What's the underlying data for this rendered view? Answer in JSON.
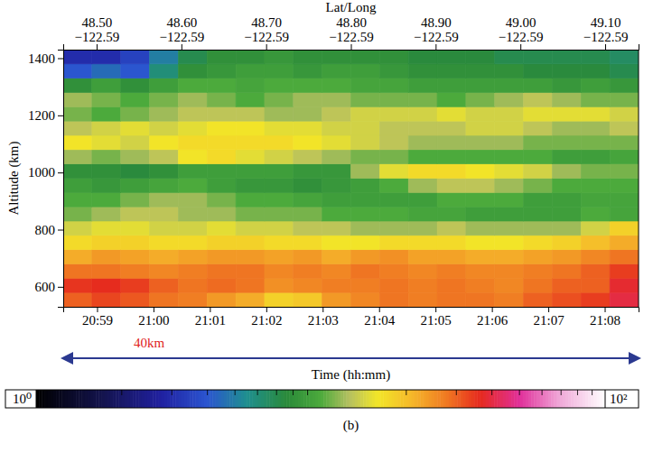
{
  "chart_data": {
    "type": "heatmap",
    "x2_title": "Lat/Long",
    "x_title": "Time (hh:mm)",
    "y_title": "Altitude (km)",
    "annotation": "40km",
    "panel_label": "(b)",
    "xlim": [
      1258.4,
      1268.6
    ],
    "xticks": [
      {
        "value": 1259,
        "label": "20:59"
      },
      {
        "value": 1260,
        "label": "21:00"
      },
      {
        "value": 1261,
        "label": "21:01"
      },
      {
        "value": 1262,
        "label": "21:02"
      },
      {
        "value": 1263,
        "label": "21:03"
      },
      {
        "value": 1264,
        "label": "21:04"
      },
      {
        "value": 1265,
        "label": "21:05"
      },
      {
        "value": 1266,
        "label": "21:06"
      },
      {
        "value": 1267,
        "label": "21:07"
      },
      {
        "value": 1268,
        "label": "21:08"
      }
    ],
    "x2lim": [
      48.4606,
      49.1394
    ],
    "x2ticks": [
      {
        "value": 48.5,
        "label": "48.50\n−122.59"
      },
      {
        "value": 48.6,
        "label": "48.60\n−122.59"
      },
      {
        "value": 48.7,
        "label": "48.70\n−122.59"
      },
      {
        "value": 48.8,
        "label": "48.80\n−122.59"
      },
      {
        "value": 48.9,
        "label": "48.90\n−122.59"
      },
      {
        "value": 49.0,
        "label": "49.00\n−122.59"
      },
      {
        "value": 49.1,
        "label": "49.10\n−122.59"
      }
    ],
    "ylim": [
      530,
      1430
    ],
    "yticks": [
      600,
      800,
      1000,
      1200,
      1400
    ],
    "x_bins": [
      1258.4,
      1258.91,
      1259.42,
      1259.93,
      1260.44,
      1260.95,
      1261.46,
      1261.97,
      1262.48,
      1262.99,
      1263.5,
      1264.01,
      1264.52,
      1265.03,
      1265.54,
      1266.05,
      1266.56,
      1267.07,
      1267.58,
      1268.09,
      1268.6
    ],
    "y_bins": [
      530,
      580,
      630,
      680,
      730,
      780,
      830,
      880,
      930,
      980,
      1030,
      1080,
      1130,
      1180,
      1230,
      1280,
      1330,
      1380,
      1430
    ],
    "z": [
      [
        30,
        33,
        31,
        28,
        27,
        24,
        22,
        18,
        19,
        24,
        26,
        28,
        27,
        28,
        28,
        27,
        30,
        32,
        34,
        40
      ],
      [
        35,
        36,
        34,
        30,
        28,
        29,
        28,
        25,
        26,
        27,
        27,
        28,
        27,
        28,
        27,
        26,
        28,
        30,
        30,
        38
      ],
      [
        28,
        28,
        27,
        26,
        27,
        28,
        28,
        26,
        27,
        26,
        28,
        27,
        26,
        27,
        26,
        26,
        27,
        28,
        30,
        34
      ],
      [
        22,
        24,
        23,
        22,
        23,
        24,
        24,
        23,
        24,
        22,
        24,
        25,
        23,
        23,
        22,
        22,
        23,
        24,
        26,
        28
      ],
      [
        17,
        18,
        18,
        17,
        17,
        18,
        18,
        17,
        17,
        16,
        16,
        17,
        17,
        17,
        16,
        16,
        17,
        18,
        20,
        22
      ],
      [
        14,
        15,
        15,
        14,
        14,
        15,
        14,
        14,
        13,
        13,
        12,
        12,
        12,
        13,
        12,
        12,
        12,
        12,
        14,
        18
      ],
      [
        11,
        12,
        13,
        13,
        12,
        12,
        11,
        11,
        11,
        10,
        10,
        10,
        9.5,
        9.5,
        9,
        9,
        9,
        9,
        10,
        9.5
      ],
      [
        10,
        10,
        11,
        12,
        12,
        11,
        10,
        10,
        9.5,
        9,
        9,
        9,
        9,
        10,
        10,
        10,
        9,
        9,
        9.5,
        9.5
      ],
      [
        9,
        8.5,
        9,
        9.5,
        10,
        9,
        8.5,
        8.5,
        8,
        8.5,
        9,
        10,
        12,
        13,
        13,
        12,
        11,
        10,
        10,
        10
      ],
      [
        8,
        8,
        7.5,
        8,
        9,
        9,
        9,
        9,
        8.5,
        8.5,
        12,
        15,
        17,
        17,
        16,
        15,
        14,
        12,
        11,
        11
      ],
      [
        12,
        11,
        12,
        13,
        16,
        17,
        15,
        14,
        13,
        12,
        11,
        11,
        10,
        10,
        10,
        10,
        10,
        9,
        9,
        9.5
      ],
      [
        16,
        15,
        14,
        16,
        17,
        17,
        17,
        17,
        16,
        15,
        14,
        13,
        12,
        12,
        12,
        12,
        11,
        11,
        11,
        11
      ],
      [
        13,
        14,
        15,
        14,
        15,
        16,
        16,
        15,
        15,
        14,
        14,
        13,
        13,
        13,
        14,
        14,
        13,
        12,
        12,
        13
      ],
      [
        11,
        10,
        11,
        12,
        13,
        13,
        13,
        12,
        12,
        13,
        14,
        14,
        14,
        15,
        14,
        14,
        15,
        15,
        15,
        14
      ],
      [
        12,
        11,
        10,
        11,
        12,
        11,
        10,
        11,
        12,
        12,
        11,
        11,
        11,
        10,
        11,
        12,
        13,
        12,
        11,
        11
      ],
      [
        8,
        9,
        8,
        9,
        10,
        10,
        9.5,
        10,
        10,
        10,
        9.5,
        9.5,
        9,
        9,
        9,
        9,
        9,
        8.5,
        9,
        8.5
      ],
      [
        4,
        4.5,
        4,
        6,
        8,
        8.5,
        9,
        9,
        8.5,
        9,
        9,
        8.5,
        8,
        8,
        8,
        8,
        7.5,
        7.5,
        7.5,
        7
      ],
      [
        3,
        3,
        3.5,
        5,
        7,
        8,
        8,
        8.5,
        8,
        8,
        8,
        8,
        7.5,
        7.5,
        7.5,
        7,
        7,
        7,
        7,
        6.5
      ]
    ],
    "colorbar_range": [
      1,
      100
    ],
    "colorbar_ticks": [
      {
        "value": 1,
        "label": "10⁰"
      },
      {
        "value": 100,
        "label": "10²"
      }
    ],
    "colorbar_minor_ticks": [
      2,
      3,
      4,
      5,
      6,
      7,
      8,
      9,
      20,
      30,
      40,
      50,
      60,
      70,
      80,
      90
    ]
  }
}
